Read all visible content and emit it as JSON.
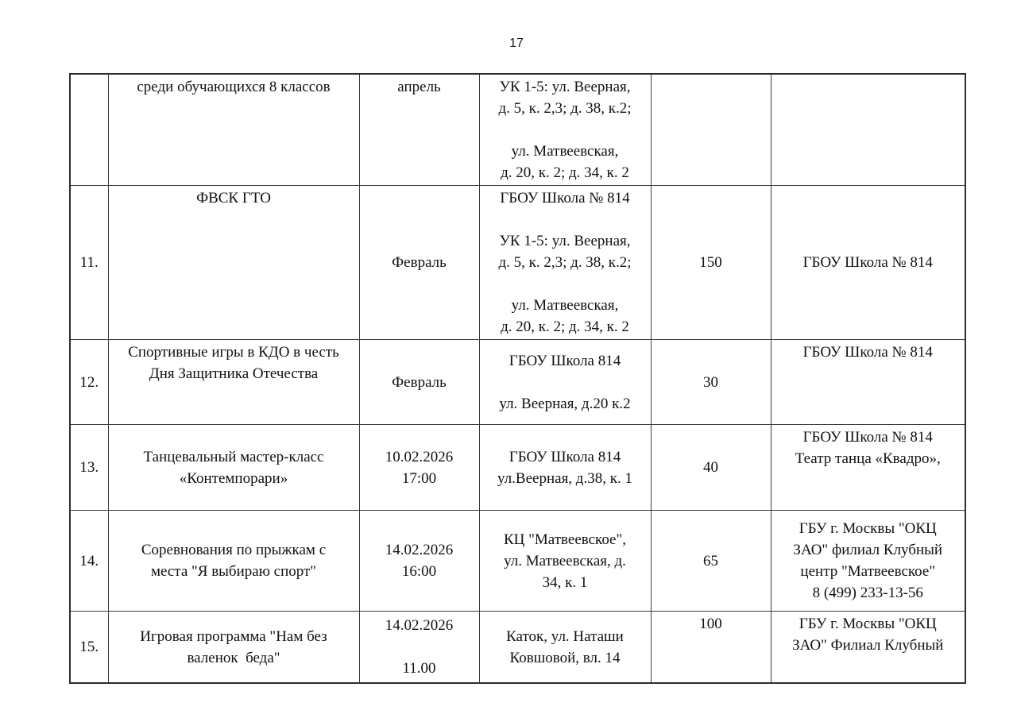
{
  "page": {
    "number": "17"
  },
  "table": {
    "rows": [
      {
        "cells": [
          {
            "lines": [],
            "v": "t"
          },
          {
            "lines": [
              "среди обучающихся 8 классов"
            ],
            "v": "t"
          },
          {
            "lines": [
              "апрель"
            ],
            "v": "t"
          },
          {
            "lines": [
              "УК 1-5: ул. Веерная,",
              "д. 5, к. 2,3; д. 38, к.2;",
              "",
              "ул. Матвеевская,",
              "д. 20, к. 2; д. 34, к. 2"
            ],
            "v": "t"
          },
          {
            "lines": [],
            "v": "t"
          },
          {
            "lines": [],
            "v": "t"
          }
        ]
      },
      {
        "cells": [
          {
            "lines": [
              "11."
            ],
            "v": "m"
          },
          {
            "lines": [
              "ФВСК ГТО"
            ],
            "v": "t"
          },
          {
            "lines": [
              "Февраль"
            ],
            "v": "m"
          },
          {
            "lines": [
              "ГБОУ Школа № 814",
              "",
              "УК 1-5: ул. Веерная,",
              "д. 5, к. 2,3; д. 38, к.2;",
              "",
              "ул. Матвеевская,",
              "д. 20, к. 2; д. 34, к. 2"
            ],
            "v": "t"
          },
          {
            "lines": [
              "150"
            ],
            "v": "m"
          },
          {
            "lines": [
              "ГБОУ Школа № 814"
            ],
            "v": "m"
          }
        ]
      },
      {
        "cells": [
          {
            "lines": [
              "12."
            ],
            "v": "m"
          },
          {
            "lines": [
              "Спортивные игры в КДО в честь",
              "Дня Защитника Отечества"
            ],
            "v": "t"
          },
          {
            "lines": [
              "Февраль"
            ],
            "v": "m"
          },
          {
            "lines": [
              "ГБОУ Школа 814",
              "",
              "ул. Веерная, д.20 к.2"
            ],
            "v": "m"
          },
          {
            "lines": [
              "30"
            ],
            "v": "m"
          },
          {
            "lines": [
              "ГБОУ Школа № 814"
            ],
            "v": "t"
          }
        ]
      },
      {
        "cells": [
          {
            "lines": [
              "13."
            ],
            "v": "m"
          },
          {
            "lines": [
              "Танцевальный мастер-класс",
              "«Контемпорари»"
            ],
            "v": "m"
          },
          {
            "lines": [
              "10.02.2026",
              "17:00"
            ],
            "v": "m"
          },
          {
            "lines": [
              "ГБОУ Школа 814",
              "ул.Веерная, д.38, к. 1"
            ],
            "v": "m"
          },
          {
            "lines": [
              "40"
            ],
            "v": "m"
          },
          {
            "lines": [
              "ГБОУ Школа № 814",
              "Театр танца «Квадро»,"
            ],
            "v": "t"
          }
        ]
      },
      {
        "cells": [
          {
            "lines": [
              "14."
            ],
            "v": "m"
          },
          {
            "lines": [
              "Соревнования по прыжкам с",
              "места \"Я выбираю спорт\""
            ],
            "v": "m"
          },
          {
            "lines": [
              "14.02.2026",
              "16:00"
            ],
            "v": "m"
          },
          {
            "lines": [
              "КЦ \"Матвеевское\",",
              "ул. Матвеевская, д.",
              "34, к. 1"
            ],
            "v": "m"
          },
          {
            "lines": [
              "65"
            ],
            "v": "m"
          },
          {
            "lines": [
              "ГБУ г. Москвы \"ОКЦ",
              "ЗАО\" филиал Клубный",
              "центр \"Матвеевское\"",
              "8 (499) 233-13-56"
            ],
            "v": "m"
          }
        ]
      },
      {
        "cells": [
          {
            "lines": [
              "15."
            ],
            "v": "m"
          },
          {
            "lines": [
              "Игровая программа \"Нам без",
              "валенок  беда\""
            ],
            "v": "m"
          },
          {
            "lines": [
              "14.02.2026",
              "",
              "11.00"
            ],
            "v": "m"
          },
          {
            "lines": [
              "Каток, ул. Наташи",
              "Ковшовой, вл. 14"
            ],
            "v": "m"
          },
          {
            "lines": [
              "100"
            ],
            "v": "t"
          },
          {
            "lines": [
              "ГБУ г. Москвы \"ОКЦ",
              "ЗАО\" Филиал Клубный"
            ],
            "v": "t"
          }
        ]
      }
    ]
  }
}
